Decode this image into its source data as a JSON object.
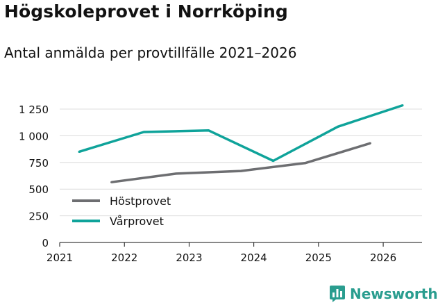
{
  "title": "Högskoleprovet i Norrköping",
  "subtitle": "Antal anmälda per provtillfälle 2021–2026",
  "brand": {
    "name": "Newsworthy",
    "logo_icon": "bar-chart-icon"
  },
  "chart_data": {
    "type": "line",
    "title": "Högskoleprovet i Norrköping",
    "subtitle": "Antal anmälda per provtillfälle 2021–2026",
    "xlabel": "",
    "ylabel": "",
    "xlim": [
      2021,
      2026.6
    ],
    "ylim": [
      0,
      1250
    ],
    "x_ticks": [
      2021,
      2022,
      2023,
      2024,
      2025,
      2026
    ],
    "x_tick_labels": [
      "2021",
      "2022",
      "2023",
      "2024",
      "2025",
      "2026"
    ],
    "y_ticks": [
      0,
      250,
      500,
      750,
      1000,
      1250
    ],
    "y_tick_labels": [
      "0",
      "250",
      "500",
      "750",
      "1 000",
      "1 250"
    ],
    "grid": "horizontal",
    "legend_position": "bottom-left",
    "series": [
      {
        "name": "Höstprovet",
        "color": "#6d6e71",
        "x": [
          2021.8,
          2022.8,
          2023.8,
          2024.8,
          2025.8
        ],
        "values": [
          565,
          645,
          670,
          745,
          930
        ]
      },
      {
        "name": "Vårprovet",
        "color": "#0fa39a",
        "x": [
          2021.3,
          2022.3,
          2023.3,
          2024.3,
          2025.3,
          2026.3
        ],
        "values": [
          850,
          1035,
          1050,
          765,
          1085,
          1285
        ]
      }
    ]
  }
}
